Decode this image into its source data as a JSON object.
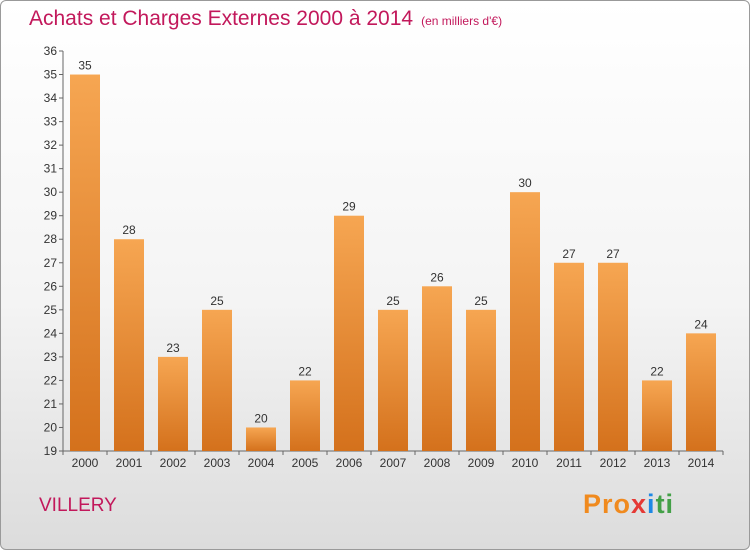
{
  "title": "Achats et Charges Externes 2000 à 2014",
  "unit": "(en milliers d'€)",
  "commune": "VILLERY",
  "logo": {
    "p1": "Pro",
    "p2": "x",
    "p3": "i",
    "p4": "ti"
  },
  "colors": {
    "bar_top": "#f6a652",
    "bar_bottom": "#d4711c",
    "title": "#c2185b"
  },
  "chart_data": {
    "type": "bar",
    "categories": [
      "2000",
      "2001",
      "2002",
      "2003",
      "2004",
      "2005",
      "2006",
      "2007",
      "2008",
      "2009",
      "2010",
      "2011",
      "2012",
      "2013",
      "2014"
    ],
    "values": [
      35,
      28,
      23,
      25,
      20,
      22,
      29,
      25,
      26,
      25,
      30,
      27,
      27,
      22,
      24
    ],
    "title": "Achats et Charges Externes 2000 à 2014",
    "xlabel": "",
    "ylabel": "",
    "ylim": [
      19,
      36
    ],
    "yticks": [
      19,
      20,
      21,
      22,
      23,
      24,
      25,
      26,
      27,
      28,
      29,
      30,
      31,
      32,
      33,
      34,
      35,
      36
    ],
    "grid": false,
    "legend": "none"
  }
}
